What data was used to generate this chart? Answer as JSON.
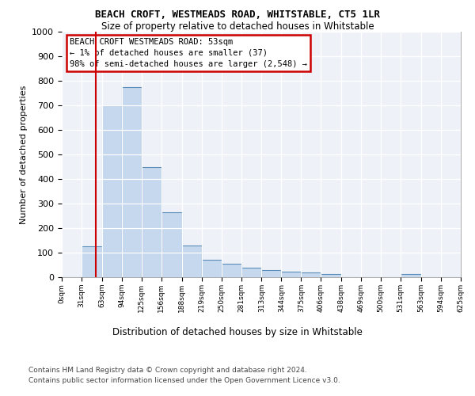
{
  "title": "BEACH CROFT, WESTMEADS ROAD, WHITSTABLE, CT5 1LR",
  "subtitle": "Size of property relative to detached houses in Whitstable",
  "xlabel": "Distribution of detached houses by size in Whitstable",
  "ylabel": "Number of detached properties",
  "footer_line1": "Contains HM Land Registry data © Crown copyright and database right 2024.",
  "footer_line2": "Contains public sector information licensed under the Open Government Licence v3.0.",
  "property_size": 53,
  "property_line_color": "#cc0000",
  "bar_color": "#c5d8ee",
  "bar_edge_color": "#5b8db8",
  "annotation_text": "BEACH CROFT WESTMEADS ROAD: 53sqm\n← 1% of detached houses are smaller (37)\n98% of semi-detached houses are larger (2,548) →",
  "annotation_box_color": "#cc0000",
  "bin_edges": [
    0,
    31,
    63,
    94,
    125,
    156,
    188,
    219,
    250,
    281,
    313,
    344,
    375,
    406,
    438,
    469,
    500,
    531,
    563,
    594,
    625
  ],
  "bin_counts": [
    0,
    125,
    700,
    775,
    450,
    265,
    130,
    70,
    55,
    40,
    28,
    22,
    18,
    12,
    0,
    0,
    0,
    12,
    0,
    0
  ],
  "ylim": [
    0,
    1000
  ],
  "yticks": [
    0,
    100,
    200,
    300,
    400,
    500,
    600,
    700,
    800,
    900,
    1000
  ],
  "plot_bg_color": "#eef2f8"
}
